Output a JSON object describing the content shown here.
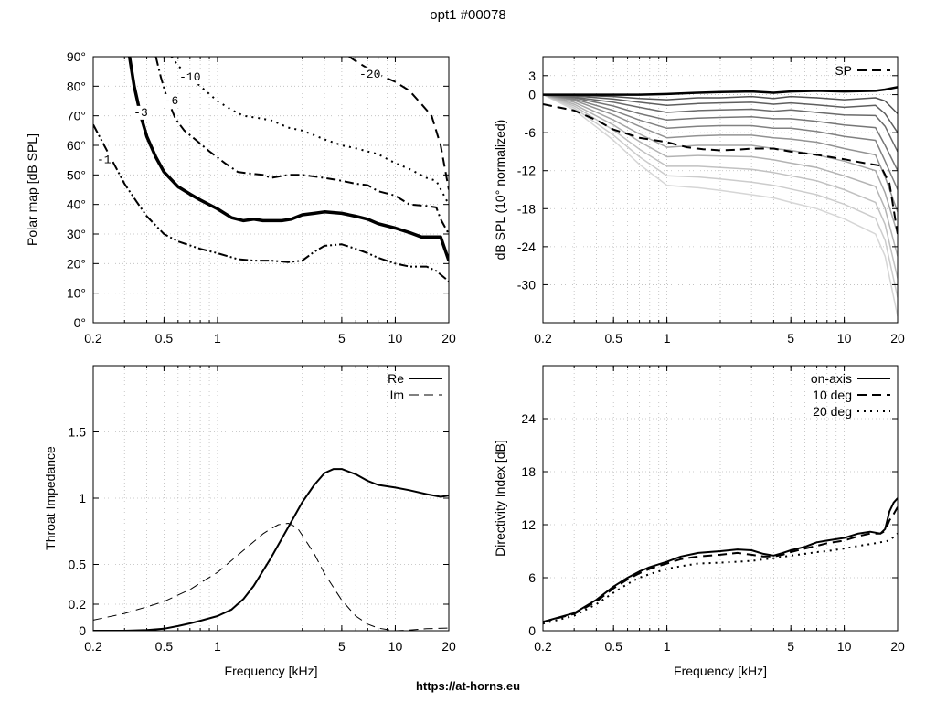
{
  "title": "opt1 #00078",
  "footer": "https://at-horns.eu",
  "chart_data": [
    {
      "id": "polar",
      "type": "line",
      "ylabel": "Polar map [dB SPL]",
      "xscale": "log",
      "xlim": [
        0.2,
        20
      ],
      "ylim": [
        0,
        90
      ],
      "xticks": [
        0.2,
        0.5,
        1,
        5,
        10,
        20
      ],
      "xtick_labels": [
        "0.2",
        "0.5",
        "1",
        "5",
        "10",
        "20"
      ],
      "yticks": [
        0,
        10,
        20,
        30,
        40,
        50,
        60,
        70,
        80,
        90
      ],
      "ytick_labels": [
        "0°",
        "10°",
        "20°",
        "30°",
        "40°",
        "50°",
        "60°",
        "70°",
        "80°",
        "90°"
      ],
      "grid": true,
      "series": [
        {
          "name": "-1",
          "style": "dashdotdot",
          "width": 2,
          "x": [
            0.2,
            0.25,
            0.3,
            0.35,
            0.4,
            0.5,
            0.6,
            0.8,
            1,
            1.3,
            1.6,
            2,
            2.5,
            3,
            3.5,
            4,
            5,
            6,
            7,
            8,
            10,
            12,
            15,
            17,
            20
          ],
          "y": [
            67,
            56,
            47,
            41,
            36,
            30,
            27.5,
            25,
            23.5,
            21.5,
            21,
            21,
            20.5,
            21,
            24,
            26,
            26.5,
            25,
            23.5,
            22,
            20,
            19,
            19,
            17.5,
            14
          ]
        },
        {
          "name": "-3",
          "style": "solid",
          "width": 3.5,
          "x": [
            0.32,
            0.34,
            0.37,
            0.4,
            0.45,
            0.5,
            0.6,
            0.7,
            0.8,
            1,
            1.2,
            1.4,
            1.6,
            1.8,
            2,
            2.3,
            2.6,
            3,
            3.5,
            4,
            5,
            6,
            7,
            8,
            10,
            12,
            14,
            16,
            18,
            20
          ],
          "y": [
            90,
            80,
            70,
            63,
            56,
            51,
            46,
            43.5,
            41.5,
            38.5,
            35.5,
            34.5,
            35,
            34.5,
            34.5,
            34.5,
            35,
            36.5,
            37,
            37.5,
            37,
            36,
            35,
            33.5,
            32,
            30.5,
            29,
            29,
            29,
            21
          ]
        },
        {
          "name": "-6",
          "style": "dashdot",
          "width": 2,
          "x": [
            0.45,
            0.48,
            0.52,
            0.58,
            0.65,
            0.75,
            0.9,
            1.1,
            1.3,
            1.5,
            1.8,
            2,
            2.5,
            3,
            4,
            5,
            6,
            7,
            8,
            10,
            12,
            15,
            17,
            18,
            20
          ],
          "y": [
            90,
            83,
            76,
            69,
            65,
            62,
            58,
            54,
            51,
            50.5,
            50,
            49,
            50,
            50,
            49,
            48,
            47,
            46.5,
            44.5,
            43,
            40,
            39.5,
            39,
            35,
            30
          ]
        },
        {
          "name": "-10",
          "style": "dotted",
          "width": 2,
          "x": [
            0.55,
            0.6,
            0.7,
            0.8,
            1,
            1.2,
            1.4,
            1.6,
            2,
            2.5,
            3,
            4,
            5,
            6,
            8,
            10,
            12,
            15,
            17,
            20
          ],
          "y": [
            90,
            87,
            83,
            80,
            75,
            72,
            70,
            69.5,
            68.5,
            66,
            65,
            62,
            60,
            59,
            57,
            54,
            52,
            49,
            48,
            40
          ]
        },
        {
          "name": "-20",
          "style": "dashed",
          "width": 2,
          "x": [
            5.5,
            6,
            7,
            8,
            10,
            12,
            14,
            16,
            18,
            20
          ],
          "y": [
            90,
            88.5,
            86,
            84,
            81.5,
            78.5,
            74,
            70,
            60,
            45
          ]
        }
      ],
      "contour_labels": [
        {
          "text": "-1",
          "x": 0.23,
          "y": 55
        },
        {
          "text": "-3",
          "x": 0.37,
          "y": 71
        },
        {
          "text": "-6",
          "x": 0.55,
          "y": 75
        },
        {
          "text": "-10",
          "x": 0.7,
          "y": 83
        },
        {
          "text": "-20",
          "x": 7.2,
          "y": 84
        }
      ]
    },
    {
      "id": "spl",
      "type": "line",
      "ylabel": "dB SPL (10° normalized)",
      "xscale": "log",
      "xlim": [
        0.2,
        20
      ],
      "ylim": [
        -36,
        6
      ],
      "xticks": [
        0.2,
        0.5,
        1,
        5,
        10,
        20
      ],
      "xtick_labels": [
        "0.2",
        "0.5",
        "1",
        "5",
        "10",
        "20"
      ],
      "yticks": [
        3,
        0,
        -6,
        -12,
        -18,
        -24,
        -30
      ],
      "ytick_labels": [
        "3",
        "0",
        "-6",
        "-12",
        "-18",
        "-24",
        "-30"
      ],
      "grid": true,
      "legend": "top-right",
      "x": [
        0.2,
        0.3,
        0.5,
        0.7,
        1,
        1.5,
        2,
        3,
        4,
        5,
        7,
        10,
        15,
        17,
        20
      ],
      "curves": [
        {
          "y": [
            0,
            0,
            0,
            0,
            0.1,
            0.3,
            0.4,
            0.5,
            0.3,
            0.5,
            0.6,
            0.5,
            0.6,
            0.8,
            1.2
          ],
          "shade": 0.0,
          "width": 2.5
        },
        {
          "y": [
            0,
            -0.1,
            -0.3,
            -0.6,
            -0.8,
            -0.5,
            -0.5,
            -0.3,
            -0.6,
            -0.3,
            -0.5,
            -0.8,
            -0.5,
            -1,
            -3
          ],
          "shade": 0.35,
          "width": 1.5
        },
        {
          "y": [
            0,
            -0.2,
            -0.7,
            -1.2,
            -1.7,
            -1.4,
            -1.3,
            -1.2,
            -1.5,
            -1.3,
            -1.6,
            -2,
            -1.7,
            -3,
            -6
          ],
          "shade": 0.4,
          "width": 1.5
        },
        {
          "y": [
            0,
            -0.4,
            -1.2,
            -2,
            -2.8,
            -2.5,
            -2.4,
            -2.3,
            -2.6,
            -2.4,
            -2.8,
            -3.2,
            -3.3,
            -5,
            -9
          ],
          "shade": 0.45,
          "width": 1.5
        },
        {
          "y": [
            0,
            -0.5,
            -1.8,
            -3,
            -4,
            -3.7,
            -3.6,
            -3.5,
            -3.8,
            -3.8,
            -4.2,
            -4.8,
            -5.2,
            -8,
            -12
          ],
          "shade": 0.5,
          "width": 1.5
        },
        {
          "y": [
            0,
            -0.7,
            -2.5,
            -4,
            -5.3,
            -5,
            -4.9,
            -4.9,
            -5.3,
            -5.3,
            -5.8,
            -6.6,
            -7.2,
            -10.5,
            -15
          ],
          "shade": 0.55,
          "width": 1.5
        },
        {
          "y": [
            0,
            -0.9,
            -3.2,
            -5,
            -6.8,
            -6.5,
            -6.4,
            -6.4,
            -6.8,
            -7,
            -7.5,
            -8.5,
            -9.5,
            -13,
            -18.5
          ],
          "shade": 0.62,
          "width": 1.5
        },
        {
          "y": [
            0,
            -1.2,
            -4,
            -6.2,
            -8.3,
            -8,
            -8,
            -8,
            -8.5,
            -8.8,
            -9.5,
            -10.5,
            -12,
            -15.5,
            -22
          ],
          "shade": 0.7,
          "width": 1.5
        },
        {
          "y": [
            0,
            -1.5,
            -4.8,
            -7.4,
            -9.8,
            -9.6,
            -9.7,
            -9.8,
            -10.3,
            -10.8,
            -11.5,
            -12.8,
            -14.5,
            -18,
            -25.5
          ],
          "shade": 0.76,
          "width": 1.5
        },
        {
          "y": [
            0,
            -1.8,
            -5.6,
            -8.6,
            -11.3,
            -11.3,
            -11.5,
            -11.8,
            -12.3,
            -12.8,
            -13.6,
            -15,
            -17,
            -20.5,
            -29
          ],
          "shade": 0.82,
          "width": 1.5
        },
        {
          "y": [
            0,
            -2.1,
            -6.4,
            -9.8,
            -12.8,
            -13,
            -13.3,
            -13.8,
            -14.3,
            -14.9,
            -15.8,
            -17.3,
            -19.5,
            -23,
            -32
          ],
          "shade": 0.87,
          "width": 1.5
        },
        {
          "y": [
            0,
            -2.4,
            -7.2,
            -11,
            -14.3,
            -14.7,
            -15.1,
            -15.8,
            -16.3,
            -17,
            -18,
            -19.6,
            -22,
            -25.5,
            -35
          ],
          "shade": 0.91,
          "width": 1.5
        }
      ],
      "series": [
        {
          "name": "SP",
          "style": "dashed",
          "width": 2,
          "x": [
            0.2,
            0.3,
            0.4,
            0.5,
            0.7,
            1,
            1.3,
            1.6,
            2,
            2.5,
            3,
            4,
            5,
            7,
            10,
            13,
            16,
            18,
            20
          ],
          "y": [
            -1.5,
            -2.5,
            -4,
            -5.5,
            -6.8,
            -7.5,
            -8.3,
            -8.6,
            -8.8,
            -8.7,
            -8.5,
            -8.5,
            -9,
            -9.5,
            -10.2,
            -10.8,
            -11.2,
            -14,
            -22
          ]
        }
      ]
    },
    {
      "id": "impedance",
      "type": "line",
      "xlabel": "Frequency [kHz]",
      "ylabel": "Throat Impedance",
      "xscale": "log",
      "xlim": [
        0.2,
        20
      ],
      "ylim": [
        0,
        2
      ],
      "xticks": [
        0.2,
        0.5,
        1,
        5,
        10,
        20
      ],
      "xtick_labels": [
        "0.2",
        "0.5",
        "1",
        "5",
        "10",
        "20"
      ],
      "yticks": [
        0,
        0.2,
        0.5,
        1,
        1.5
      ],
      "ytick_labels": [
        "0",
        "0.2",
        "0.5",
        "1",
        "1.5"
      ],
      "grid": true,
      "legend": "top-right",
      "series": [
        {
          "name": "Re",
          "style": "solid",
          "width": 2,
          "x": [
            0.2,
            0.3,
            0.4,
            0.5,
            0.6,
            0.7,
            0.8,
            1,
            1.2,
            1.4,
            1.6,
            2,
            2.5,
            3,
            3.5,
            4,
            4.5,
            5,
            6,
            7,
            8,
            10,
            12,
            15,
            18,
            20
          ],
          "y": [
            0,
            0,
            0.005,
            0.015,
            0.035,
            0.055,
            0.075,
            0.11,
            0.16,
            0.24,
            0.34,
            0.55,
            0.78,
            0.97,
            1.1,
            1.19,
            1.22,
            1.22,
            1.18,
            1.13,
            1.1,
            1.08,
            1.06,
            1.03,
            1.01,
            1.02
          ]
        },
        {
          "name": "Im",
          "style": "dashed",
          "width": 1,
          "x": [
            0.2,
            0.3,
            0.4,
            0.5,
            0.6,
            0.7,
            0.8,
            1,
            1.2,
            1.5,
            1.8,
            2,
            2.2,
            2.5,
            2.8,
            3,
            3.5,
            4,
            5,
            6,
            7,
            8,
            10,
            12,
            15,
            20
          ],
          "y": [
            0.08,
            0.13,
            0.18,
            0.22,
            0.27,
            0.31,
            0.36,
            0.44,
            0.53,
            0.64,
            0.73,
            0.77,
            0.8,
            0.81,
            0.78,
            0.72,
            0.58,
            0.43,
            0.23,
            0.11,
            0.05,
            0.02,
            0.0,
            0.005,
            0.015,
            0.02
          ]
        }
      ]
    },
    {
      "id": "di",
      "type": "line",
      "xlabel": "Frequency [kHz]",
      "ylabel": "Directivity Index [dB]",
      "xscale": "log",
      "xlim": [
        0.2,
        20
      ],
      "ylim": [
        0,
        30
      ],
      "xticks": [
        0.2,
        0.5,
        1,
        5,
        10,
        20
      ],
      "xtick_labels": [
        "0.2",
        "0.5",
        "1",
        "5",
        "10",
        "20"
      ],
      "yticks": [
        0,
        6,
        12,
        18,
        24
      ],
      "ytick_labels": [
        "0",
        "6",
        "12",
        "18",
        "24"
      ],
      "grid": true,
      "legend": "top-right",
      "series": [
        {
          "name": "on-axis",
          "style": "solid",
          "width": 2,
          "x": [
            0.2,
            0.3,
            0.4,
            0.5,
            0.6,
            0.7,
            0.8,
            1,
            1.2,
            1.5,
            2,
            2.5,
            3,
            3.5,
            4,
            4.5,
            5,
            6,
            7,
            8,
            10,
            12,
            14,
            16,
            17,
            18,
            19,
            20
          ],
          "y": [
            1,
            2,
            3.5,
            5,
            6,
            6.7,
            7.2,
            7.8,
            8.4,
            8.8,
            9,
            9.2,
            9.1,
            8.7,
            8.5,
            8.8,
            9.1,
            9.5,
            10,
            10.2,
            10.5,
            11,
            11.2,
            11,
            11.5,
            13.5,
            14.5,
            15
          ]
        },
        {
          "name": "10 deg",
          "style": "dashed",
          "width": 2,
          "x": [
            0.2,
            0.3,
            0.4,
            0.5,
            0.6,
            0.7,
            0.8,
            1,
            1.2,
            1.5,
            2,
            2.5,
            3,
            3.5,
            4,
            4.5,
            5,
            6,
            7,
            8,
            10,
            12,
            14,
            16,
            17,
            18,
            19,
            20
          ],
          "y": [
            1,
            1.9,
            3.3,
            4.8,
            5.8,
            6.5,
            7,
            7.6,
            8.1,
            8.4,
            8.6,
            8.8,
            8.6,
            8.4,
            8.4,
            8.6,
            8.9,
            9.3,
            9.6,
            9.9,
            10.2,
            10.7,
            11,
            11,
            11.3,
            12.5,
            13.2,
            14
          ]
        },
        {
          "name": "20 deg",
          "style": "dotted",
          "width": 2,
          "x": [
            0.2,
            0.3,
            0.4,
            0.5,
            0.6,
            0.7,
            0.8,
            1,
            1.2,
            1.5,
            2,
            2.5,
            3,
            4,
            5,
            6,
            7,
            8,
            10,
            12,
            15,
            18,
            20
          ],
          "y": [
            0.8,
            1.7,
            3,
            4.3,
            5.3,
            6,
            6.4,
            7,
            7.3,
            7.6,
            7.7,
            7.8,
            7.9,
            8.2,
            8.5,
            8.7,
            8.9,
            9,
            9.3,
            9.6,
            9.9,
            10.2,
            11
          ]
        }
      ]
    }
  ]
}
